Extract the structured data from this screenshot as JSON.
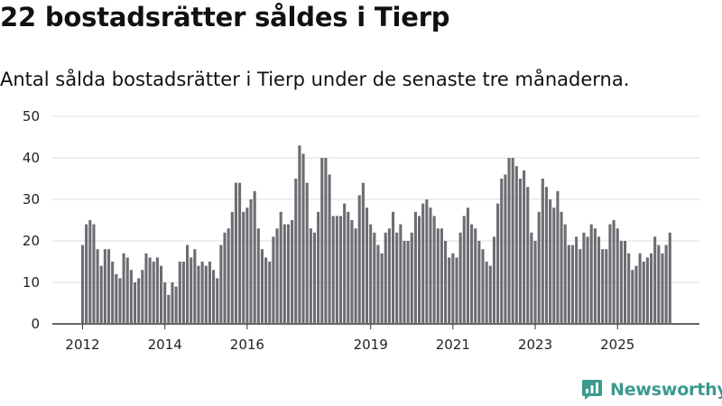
{
  "header": {
    "title": "22 bostadsrätter såldes i Tierp",
    "subtitle": "Antal sålda bostadsrätter i Tierp under de senaste tre månaderna."
  },
  "brand": {
    "name": "Newsworthy",
    "color": "#3a9a8c"
  },
  "colors": {
    "bar": "#6d6c72",
    "highlight": "#1f9c8e",
    "grid": "#dddddd",
    "axis": "#333333"
  },
  "chart_data": {
    "type": "bar",
    "ylim": [
      0,
      50
    ],
    "yticks": [
      0,
      10,
      20,
      30,
      40,
      50
    ],
    "grid": true,
    "xtick_labels": [
      {
        "label": "2012",
        "index": 0
      },
      {
        "label": "2014",
        "index": 22
      },
      {
        "label": "2016",
        "index": 44
      },
      {
        "label": "2019",
        "index": 77
      },
      {
        "label": "2021",
        "index": 99
      },
      {
        "label": "2023",
        "index": 121
      },
      {
        "label": "2025",
        "index": 143
      }
    ],
    "values": [
      19,
      24,
      25,
      24,
      18,
      14,
      18,
      18,
      15,
      12,
      11,
      17,
      16,
      13,
      10,
      11,
      13,
      17,
      16,
      15,
      16,
      14,
      10,
      7,
      10,
      9,
      15,
      15,
      19,
      16,
      18,
      14,
      15,
      14,
      15,
      13,
      11,
      19,
      22,
      23,
      27,
      34,
      34,
      27,
      28,
      30,
      32,
      23,
      18,
      16,
      15,
      21,
      23,
      27,
      24,
      24,
      25,
      35,
      43,
      41,
      34,
      23,
      22,
      27,
      40,
      40,
      36,
      26,
      26,
      26,
      29,
      27,
      25,
      23,
      31,
      34,
      28,
      24,
      22,
      19,
      17,
      22,
      23,
      27,
      22,
      24,
      20,
      20,
      22,
      27,
      26,
      29,
      30,
      28,
      26,
      23,
      23,
      20,
      16,
      17,
      16,
      22,
      26,
      28,
      24,
      23,
      20,
      18,
      15,
      14,
      21,
      29,
      35,
      36,
      40,
      40,
      38,
      35,
      37,
      33,
      22,
      20,
      27,
      35,
      33,
      30,
      28,
      32,
      27,
      24,
      19,
      19,
      21,
      18,
      22,
      21,
      24,
      23,
      21,
      18,
      18,
      24,
      25,
      23,
      20,
      20,
      17,
      13,
      14,
      17,
      15,
      16,
      17,
      21,
      19,
      17,
      19,
      22
    ],
    "highlight_index": 158,
    "highlight_label": "22"
  }
}
